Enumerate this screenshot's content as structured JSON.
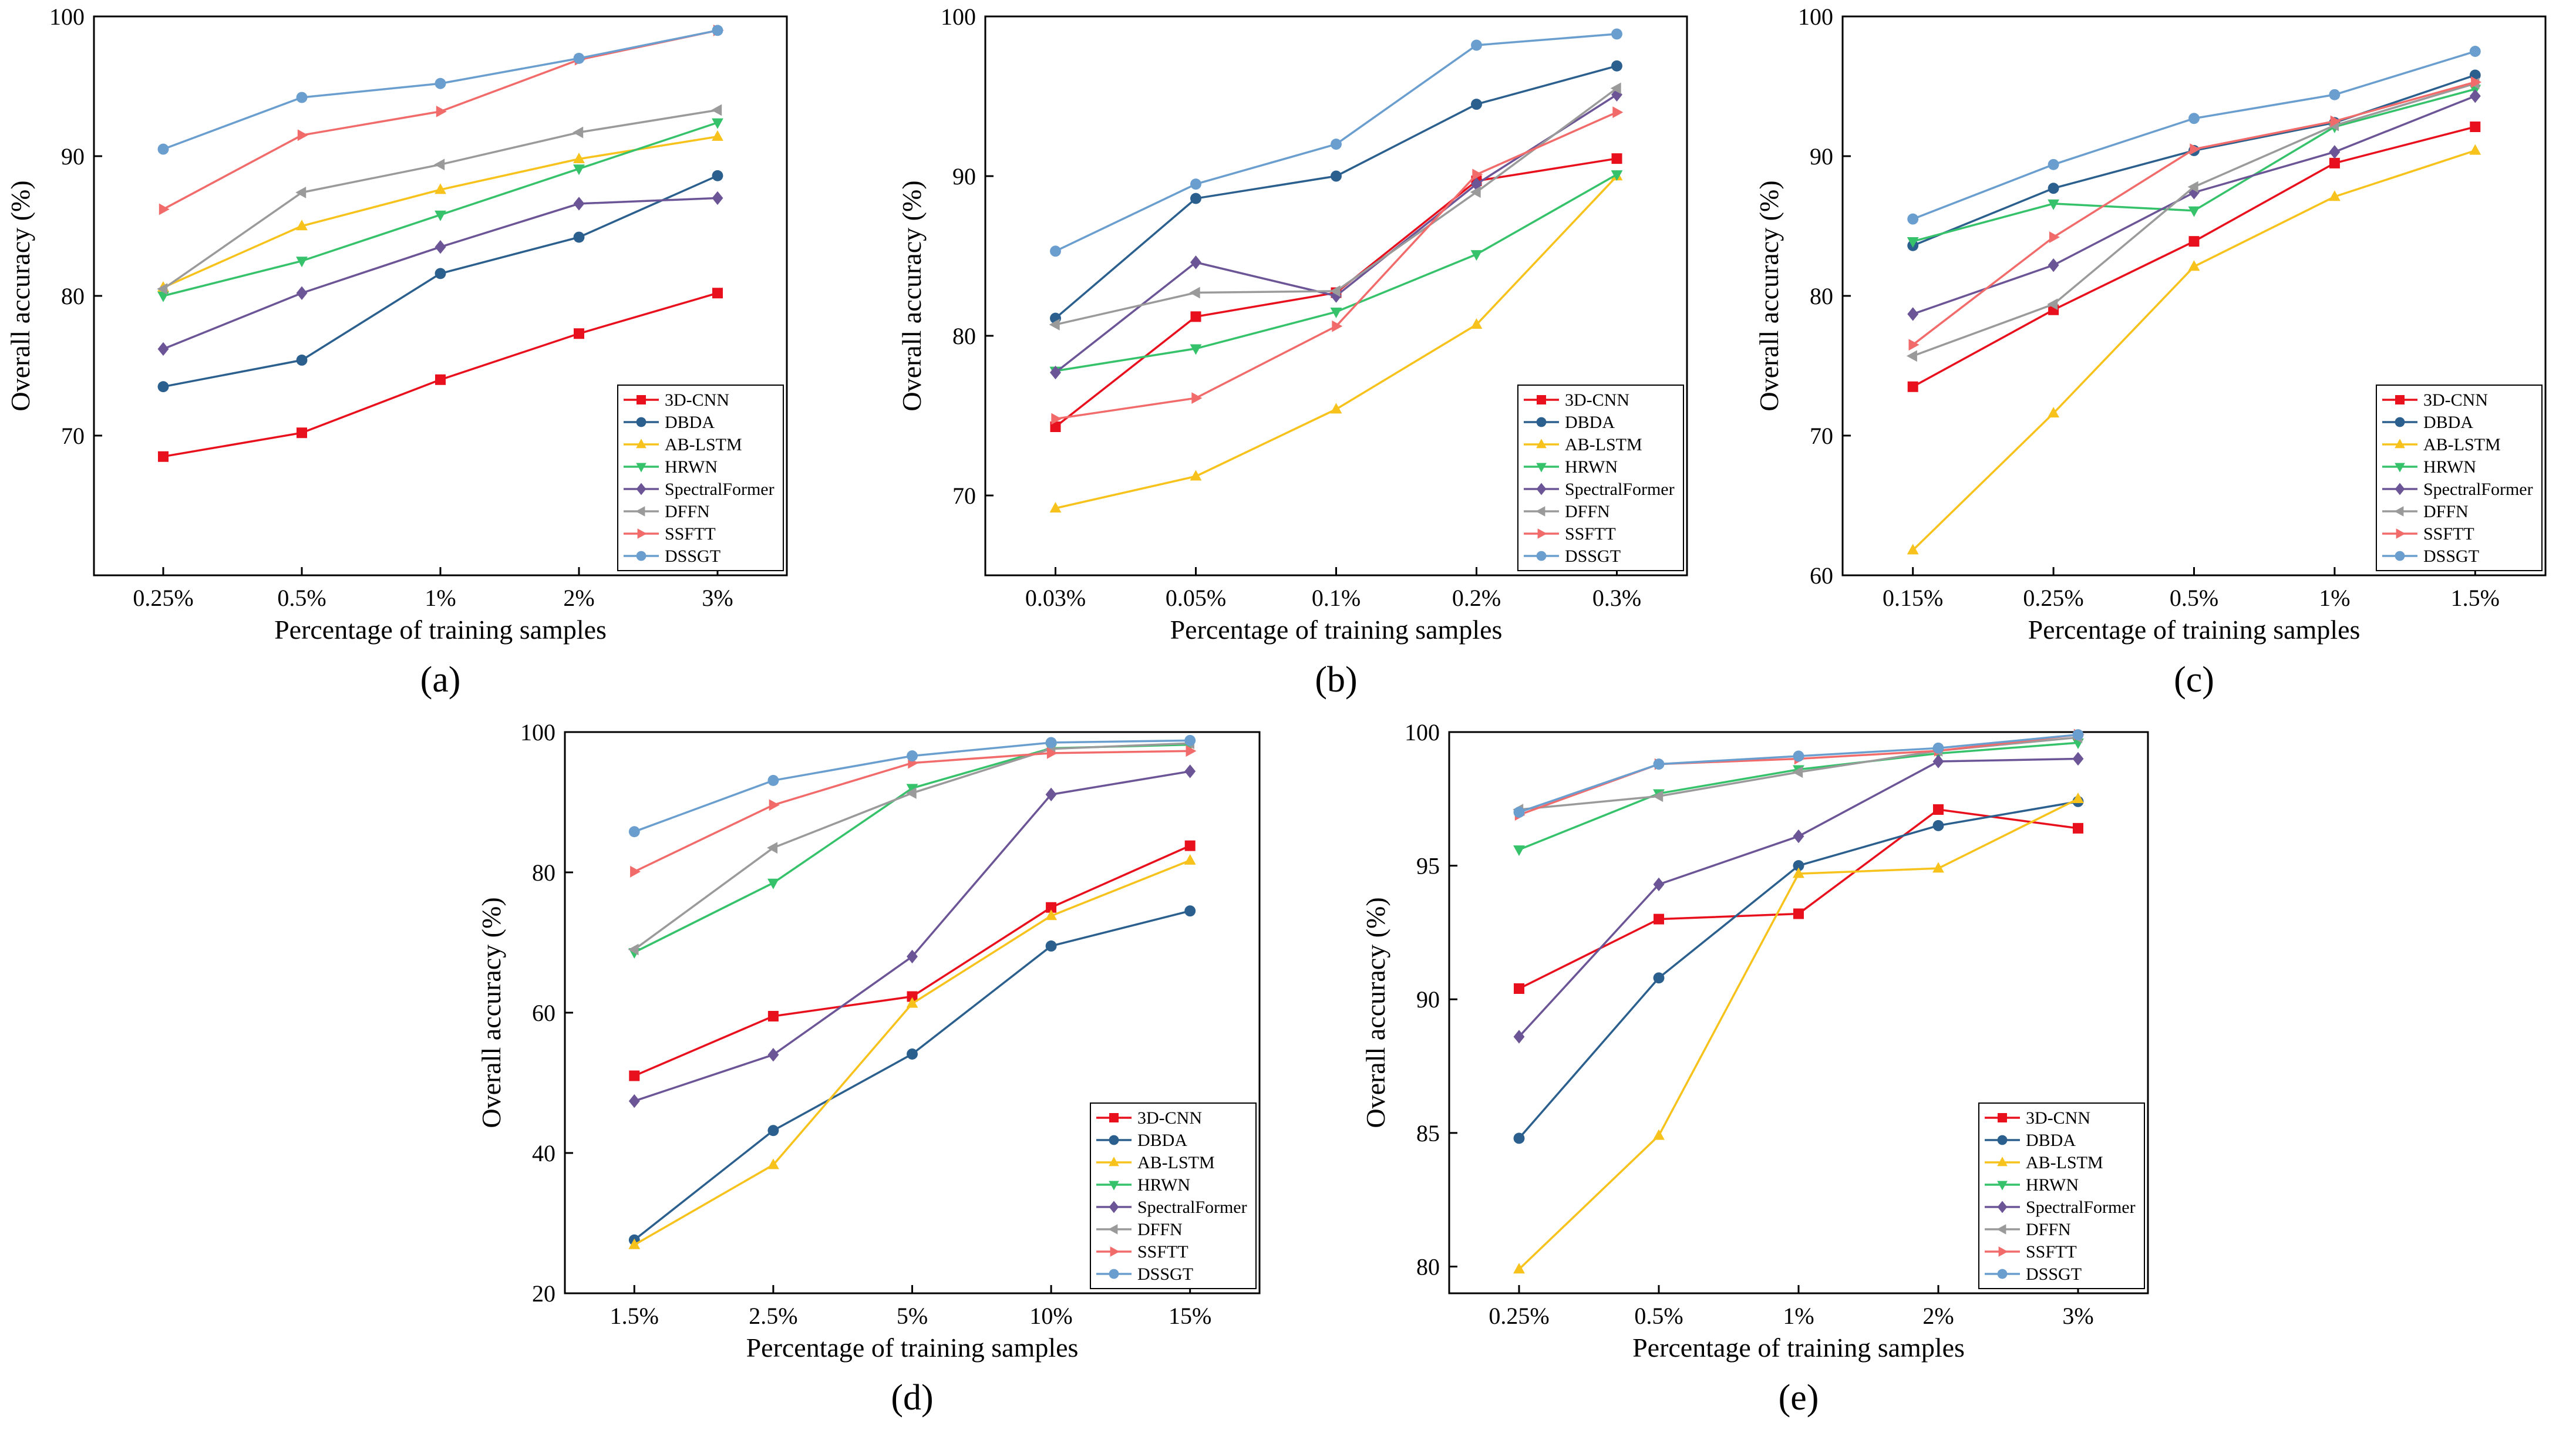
{
  "figure": {
    "panel_labels": [
      "(a)",
      "(b)",
      "(c)",
      "(d)",
      "(e)"
    ]
  },
  "legend_entries": [
    "3D-CNN",
    "DBDA",
    "AB-LSTM",
    "HRWN",
    "SpectralFormer",
    "DFFN",
    "SSFTT",
    "DSSGT"
  ],
  "colors": {
    "3D-CNN": "#e8101c",
    "DBDA": "#2b5f8e",
    "AB-LSTM": "#f7c21b",
    "HRWN": "#35c26a",
    "SpectralFormer": "#6b5596",
    "DFFN": "#9a9a9a",
    "SSFTT": "#f26b6b",
    "DSSGT": "#6a9ecf"
  },
  "markers": {
    "3D-CNN": "square",
    "DBDA": "circle",
    "AB-LSTM": "triangle-up",
    "HRWN": "triangle-down",
    "SpectralFormer": "diamond",
    "DFFN": "triangle-left",
    "SSFTT": "triangle-right",
    "DSSGT": "circle"
  },
  "chart_data": [
    {
      "type": "line",
      "panel_label": "(a)",
      "xlabel": "Percentage of training samples",
      "ylabel": "Overall accuracy (%)",
      "categories": [
        "0.25%",
        "0.5%",
        "1%",
        "2%",
        "3%"
      ],
      "ylim": [
        60,
        100
      ],
      "yticks": [
        70,
        80,
        90,
        100
      ],
      "legend_position": "bottom-right",
      "series": [
        {
          "name": "3D-CNN",
          "values": [
            68.5,
            70.2,
            74.0,
            77.3,
            80.2
          ]
        },
        {
          "name": "DBDA",
          "values": [
            73.5,
            75.4,
            81.6,
            84.2,
            88.6
          ]
        },
        {
          "name": "AB-LSTM",
          "values": [
            80.6,
            85.0,
            87.6,
            89.8,
            91.4
          ]
        },
        {
          "name": "HRWN",
          "values": [
            80.0,
            82.5,
            85.8,
            89.1,
            92.4
          ]
        },
        {
          "name": "SpectralFormer",
          "values": [
            76.2,
            80.2,
            83.5,
            86.6,
            87.0
          ]
        },
        {
          "name": "DFFN",
          "values": [
            80.5,
            87.4,
            89.4,
            91.7,
            93.3
          ]
        },
        {
          "name": "SSFTT",
          "values": [
            86.2,
            91.5,
            93.2,
            96.9,
            99.0
          ]
        },
        {
          "name": "DSSGT",
          "values": [
            90.5,
            94.2,
            95.2,
            97.0,
            99.0
          ]
        }
      ]
    },
    {
      "type": "line",
      "panel_label": "(b)",
      "xlabel": "Percentage of training samples",
      "ylabel": "Overall accuracy (%)",
      "categories": [
        "0.03%",
        "0.05%",
        "0.1%",
        "0.2%",
        "0.3%"
      ],
      "ylim": [
        65,
        100
      ],
      "yticks": [
        70,
        80,
        90,
        100
      ],
      "legend_position": "bottom-right",
      "series": [
        {
          "name": "3D-CNN",
          "values": [
            74.3,
            81.2,
            82.7,
            89.7,
            91.1
          ]
        },
        {
          "name": "DBDA",
          "values": [
            81.1,
            88.6,
            90.0,
            94.5,
            96.9
          ]
        },
        {
          "name": "AB-LSTM",
          "values": [
            69.2,
            71.2,
            75.4,
            80.7,
            90.0
          ]
        },
        {
          "name": "HRWN",
          "values": [
            77.8,
            79.2,
            81.5,
            85.1,
            90.1
          ]
        },
        {
          "name": "SpectralFormer",
          "values": [
            77.7,
            84.6,
            82.5,
            89.5,
            95.1
          ]
        },
        {
          "name": "DFFN",
          "values": [
            80.7,
            82.7,
            82.8,
            89.0,
            95.5
          ]
        },
        {
          "name": "SSFTT",
          "values": [
            74.8,
            76.1,
            80.6,
            90.1,
            94.0
          ]
        },
        {
          "name": "DSSGT",
          "values": [
            85.3,
            89.5,
            92.0,
            98.2,
            98.9
          ]
        }
      ]
    },
    {
      "type": "line",
      "panel_label": "(c)",
      "xlabel": "Percentage of training samples",
      "ylabel": "Overall accuracy (%)",
      "categories": [
        "0.15%",
        "0.25%",
        "0.5%",
        "1%",
        "1.5%"
      ],
      "ylim": [
        60,
        100
      ],
      "yticks": [
        60,
        70,
        80,
        90,
        100
      ],
      "legend_position": "bottom-right",
      "series": [
        {
          "name": "3D-CNN",
          "values": [
            73.5,
            79.0,
            83.9,
            89.5,
            92.1
          ]
        },
        {
          "name": "DBDA",
          "values": [
            83.6,
            87.7,
            90.4,
            92.4,
            95.8
          ]
        },
        {
          "name": "AB-LSTM",
          "values": [
            61.8,
            71.6,
            82.1,
            87.1,
            90.4
          ]
        },
        {
          "name": "HRWN",
          "values": [
            83.9,
            86.6,
            86.1,
            92.1,
            94.8
          ]
        },
        {
          "name": "SpectralFormer",
          "values": [
            78.7,
            82.2,
            87.4,
            90.3,
            94.3
          ]
        },
        {
          "name": "DFFN",
          "values": [
            75.7,
            79.4,
            87.8,
            92.2,
            95.2
          ]
        },
        {
          "name": "SSFTT",
          "values": [
            76.5,
            84.2,
            90.5,
            92.5,
            95.3
          ]
        },
        {
          "name": "DSSGT",
          "values": [
            85.5,
            89.4,
            92.7,
            94.4,
            97.5
          ]
        }
      ]
    },
    {
      "type": "line",
      "panel_label": "(d)",
      "xlabel": "Percentage of training samples",
      "ylabel": "Overall accuracy (%)",
      "categories": [
        "1.5%",
        "2.5%",
        "5%",
        "10%",
        "15%"
      ],
      "ylim": [
        20,
        100
      ],
      "yticks": [
        20,
        40,
        60,
        80,
        100
      ],
      "legend_position": "bottom-right",
      "series": [
        {
          "name": "3D-CNN",
          "values": [
            51.0,
            59.5,
            62.3,
            75.0,
            83.8
          ]
        },
        {
          "name": "DBDA",
          "values": [
            27.6,
            43.2,
            54.1,
            69.5,
            74.5
          ]
        },
        {
          "name": "AB-LSTM",
          "values": [
            26.9,
            38.3,
            61.3,
            73.8,
            81.7
          ]
        },
        {
          "name": "HRWN",
          "values": [
            68.6,
            78.5,
            92.0,
            97.7,
            98.2
          ]
        },
        {
          "name": "SpectralFormer",
          "values": [
            47.4,
            54.0,
            68.0,
            91.1,
            94.4
          ]
        },
        {
          "name": "DFFN",
          "values": [
            69.0,
            83.5,
            91.3,
            97.6,
            98.4
          ]
        },
        {
          "name": "SSFTT",
          "values": [
            80.1,
            89.6,
            95.6,
            97.0,
            97.3
          ]
        },
        {
          "name": "DSSGT",
          "values": [
            85.8,
            93.1,
            96.6,
            98.5,
            98.8
          ]
        }
      ]
    },
    {
      "type": "line",
      "panel_label": "(e)",
      "xlabel": "Percentage of training samples",
      "ylabel": "Overall accuracy (%)",
      "categories": [
        "0.25%",
        "0.5%",
        "1%",
        "2%",
        "3%"
      ],
      "ylim": [
        79,
        100
      ],
      "yticks": [
        80,
        85,
        90,
        95,
        100
      ],
      "legend_position": "bottom-right",
      "series": [
        {
          "name": "3D-CNN",
          "values": [
            90.4,
            93.0,
            93.2,
            97.1,
            96.4
          ]
        },
        {
          "name": "DBDA",
          "values": [
            84.8,
            90.8,
            95.0,
            96.5,
            97.4
          ]
        },
        {
          "name": "AB-LSTM",
          "values": [
            79.9,
            84.9,
            94.7,
            94.9,
            97.5
          ]
        },
        {
          "name": "HRWN",
          "values": [
            95.6,
            97.7,
            98.6,
            99.2,
            99.6
          ]
        },
        {
          "name": "SpectralFormer",
          "values": [
            88.6,
            94.3,
            96.1,
            98.9,
            99.0
          ]
        },
        {
          "name": "DFFN",
          "values": [
            97.1,
            97.6,
            98.5,
            99.3,
            99.8
          ]
        },
        {
          "name": "SSFTT",
          "values": [
            96.9,
            98.8,
            99.0,
            99.3,
            99.9
          ]
        },
        {
          "name": "DSSGT",
          "values": [
            97.0,
            98.8,
            99.1,
            99.4,
            99.9
          ]
        }
      ]
    }
  ]
}
